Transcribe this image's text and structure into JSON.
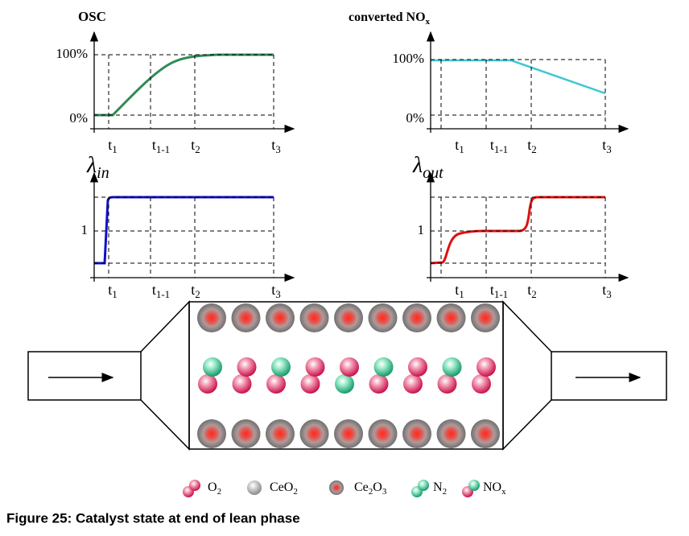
{
  "panels": [
    {
      "label": [
        {
          "text": "OSC"
        }
      ],
      "yticks": [
        [
          {
            "text": "100%"
          }
        ],
        [
          {
            "text": "0%"
          }
        ]
      ],
      "xticks": [
        [
          {
            "text": "t"
          },
          {
            "sub": "1"
          }
        ],
        [
          {
            "text": "t"
          },
          {
            "sub": "1-1"
          }
        ],
        [
          {
            "text": "t"
          },
          {
            "sub": "2"
          }
        ],
        [
          {
            "text": "t"
          },
          {
            "sub": "3"
          }
        ]
      ]
    },
    {
      "label": [
        {
          "text": "converted  NO"
        },
        {
          "sub": "x"
        }
      ],
      "yticks": [
        [
          {
            "text": "100%"
          }
        ],
        [
          {
            "text": "0%"
          }
        ]
      ],
      "xticks": [
        [
          {
            "text": "t"
          },
          {
            "sub": "1"
          }
        ],
        [
          {
            "text": "t"
          },
          {
            "sub": "1-1"
          }
        ],
        [
          {
            "text": "t"
          },
          {
            "sub": "2"
          }
        ],
        [
          {
            "text": "t"
          },
          {
            "sub": "3"
          }
        ]
      ]
    },
    {
      "label": [
        {
          "text": "λ"
        },
        {
          "sub": "in"
        }
      ],
      "yticks": [
        [
          {
            "text": "1"
          }
        ]
      ],
      "xticks": [
        [
          {
            "text": "t"
          },
          {
            "sub": "1"
          }
        ],
        [
          {
            "text": "t"
          },
          {
            "sub": "1-1"
          }
        ],
        [
          {
            "text": "t"
          },
          {
            "sub": "2"
          }
        ],
        [
          {
            "text": "t"
          },
          {
            "sub": "3"
          }
        ]
      ]
    },
    {
      "label": [
        {
          "text": "λ"
        },
        {
          "sub": "out"
        }
      ],
      "yticks": [
        [
          {
            "text": "1"
          }
        ]
      ],
      "xticks": [
        [
          {
            "text": "t"
          },
          {
            "sub": "1"
          }
        ],
        [
          {
            "text": "t"
          },
          {
            "sub": "1-1"
          }
        ],
        [
          {
            "text": "t"
          },
          {
            "sub": "2"
          }
        ],
        [
          {
            "text": "t"
          },
          {
            "sub": "3"
          }
        ]
      ]
    }
  ],
  "legend": [
    [
      {
        "text": "O"
      },
      {
        "sub": "2"
      }
    ],
    [
      {
        "text": "CeO"
      },
      {
        "sub": "2"
      }
    ],
    [
      {
        "text": "Ce"
      },
      {
        "sub": "2"
      },
      {
        "text": "O"
      },
      {
        "sub": "3"
      }
    ],
    [
      {
        "text": "N"
      },
      {
        "sub": "2"
      }
    ],
    [
      {
        "text": "NO"
      },
      {
        "sub": "x"
      }
    ]
  ],
  "caption": "Figure 25: Catalyst state at end of lean phase"
}
